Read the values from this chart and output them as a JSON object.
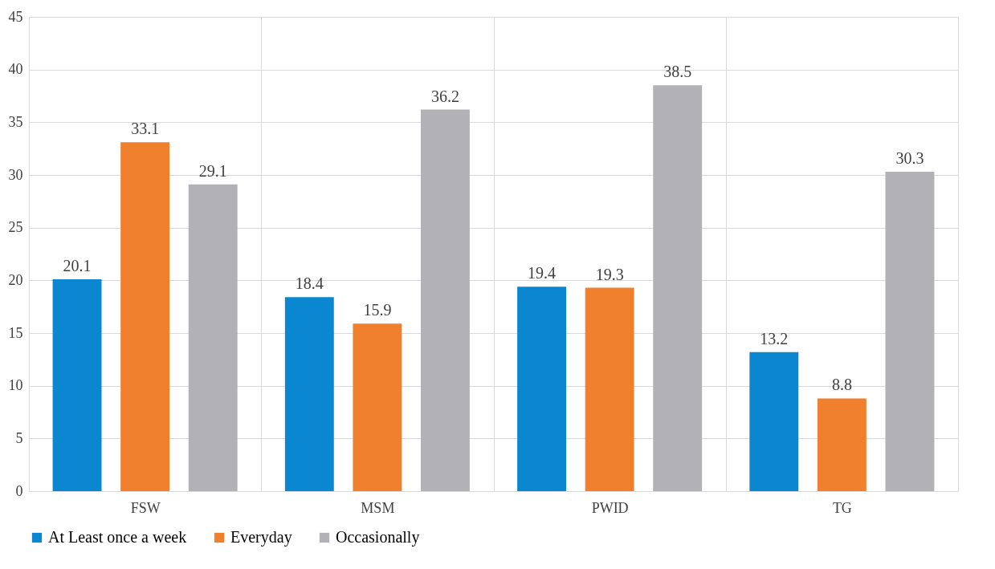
{
  "chart_data": {
    "type": "bar",
    "categories": [
      "FSW",
      "MSM",
      "PWID",
      "TG"
    ],
    "series": [
      {
        "name": "At Least once a week",
        "color": "#0a87d0",
        "values": [
          20.1,
          18.4,
          19.4,
          13.2
        ]
      },
      {
        "name": "Everyday",
        "color": "#f07f2e",
        "values": [
          33.1,
          15.9,
          19.3,
          8.8
        ]
      },
      {
        "name": "Occasionally",
        "color": "#b2b2b6",
        "values": [
          29.1,
          36.2,
          38.5,
          30.3
        ]
      }
    ],
    "ylim": [
      0,
      45
    ],
    "yticks": [
      0,
      5,
      10,
      15,
      20,
      25,
      30,
      35,
      40,
      45
    ],
    "grid": true,
    "legend": "bottom",
    "data_labels": true
  }
}
